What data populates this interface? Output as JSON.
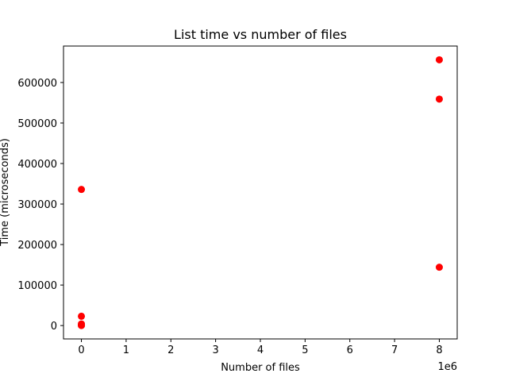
{
  "chart_data": {
    "type": "scatter",
    "title": "List time vs number of files",
    "xlabel": "Number of files",
    "ylabel": "Time (microseconds)",
    "x_offset_label": "1e6",
    "xlim": [
      -400000,
      8400000
    ],
    "ylim": [
      -33000,
      690000
    ],
    "x_ticks": [
      0,
      1000000,
      2000000,
      3000000,
      4000000,
      5000000,
      6000000,
      7000000,
      8000000
    ],
    "x_tick_labels": [
      "0",
      "1",
      "2",
      "3",
      "4",
      "5",
      "6",
      "7",
      "8"
    ],
    "y_ticks": [
      0,
      100000,
      200000,
      300000,
      400000,
      500000,
      600000
    ],
    "y_tick_labels": [
      "0",
      "100000",
      "200000",
      "300000",
      "400000",
      "500000",
      "600000"
    ],
    "marker_color": "#ff0000",
    "grid": false,
    "points": [
      {
        "x": 0,
        "y": 336000
      },
      {
        "x": 0,
        "y": 23000
      },
      {
        "x": 0,
        "y": 4000
      },
      {
        "x": 0,
        "y": 1500
      },
      {
        "x": 0,
        "y": 500
      },
      {
        "x": 0,
        "y": 100
      },
      {
        "x": 8000000,
        "y": 656000
      },
      {
        "x": 8000000,
        "y": 559000
      },
      {
        "x": 8000000,
        "y": 144000
      }
    ]
  }
}
